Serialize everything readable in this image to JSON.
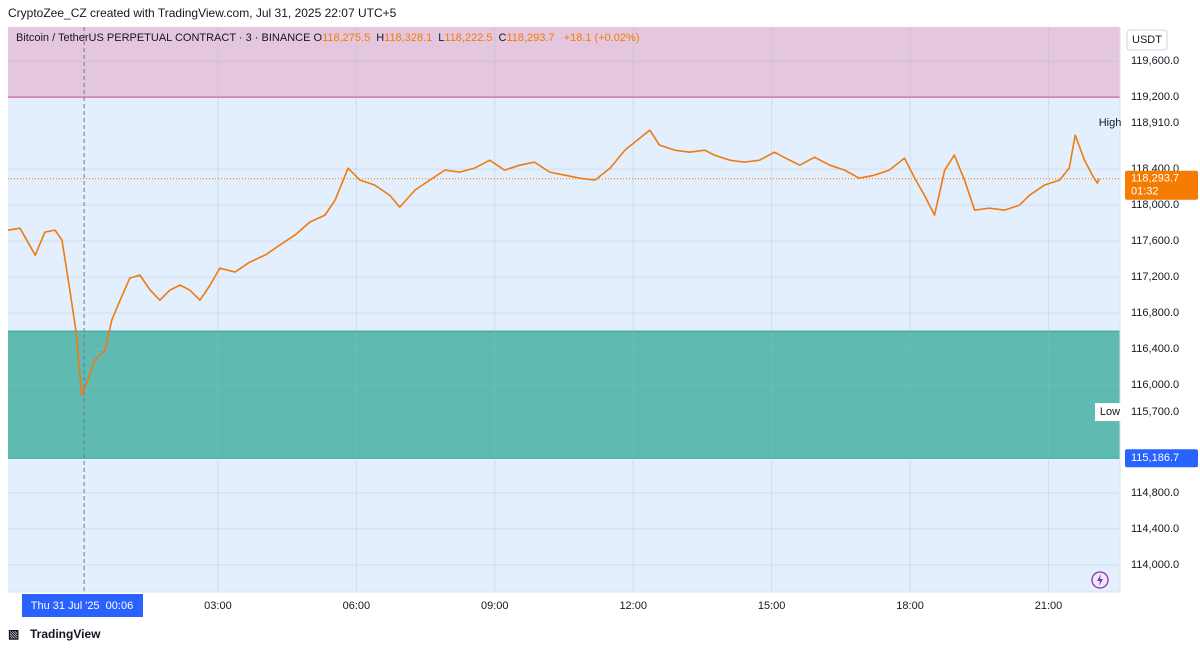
{
  "header": "CryptoZee_CZ created with TradingView.com, Jul 31, 2025 22:07 UTC+5",
  "legend": {
    "symbol": "Bitcoin / TetherUS PERPETUAL CONTRACT · 3 · BINANCE",
    "ohlc": [
      {
        "key": "O",
        "value": "118,275.5"
      },
      {
        "key": "H",
        "value": "118,328.1"
      },
      {
        "key": "L",
        "value": "118,222.5"
      },
      {
        "key": "C",
        "value": "118,293.7"
      }
    ],
    "change": "+18.1 (+0.02%)"
  },
  "footer": "TradingView",
  "chart_data": {
    "type": "line",
    "currency": "USDT",
    "color": "#ef7a12",
    "x": [
      -1.55,
      -1.29,
      -0.96,
      -0.75,
      -0.53,
      -0.38,
      -0.21,
      -0.08,
      0.05,
      0.18,
      0.33,
      0.55,
      0.7,
      0.88,
      1.09,
      1.31,
      1.53,
      1.74,
      1.96,
      2.18,
      2.39,
      2.61,
      2.83,
      3.04,
      3.37,
      3.69,
      4.02,
      4.34,
      4.67,
      4.99,
      5.32,
      5.54,
      5.82,
      6.08,
      6.4,
      6.72,
      6.94,
      7.27,
      7.59,
      7.92,
      8.24,
      8.56,
      8.89,
      9.21,
      9.54,
      9.86,
      10.19,
      10.52,
      10.84,
      11.17,
      11.5,
      11.82,
      12.14,
      12.36,
      12.57,
      12.9,
      13.22,
      13.55,
      13.76,
      14.09,
      14.41,
      14.74,
      15.06,
      15.39,
      15.61,
      15.93,
      16.26,
      16.58,
      16.9,
      17.23,
      17.55,
      17.88,
      18.1,
      18.31,
      18.53,
      18.75,
      18.96,
      19.18,
      19.4,
      19.72,
      20.05,
      20.37,
      20.59,
      20.91,
      21.24,
      21.45,
      21.58,
      21.78,
      21.95,
      22.06,
      22.1
    ],
    "values": [
      117722,
      117744,
      117444,
      117700,
      117722,
      117611,
      117056,
      116611,
      115889,
      116056,
      116278,
      116389,
      116722,
      116944,
      117189,
      117222,
      117056,
      116944,
      117056,
      117111,
      117056,
      116944,
      117111,
      117300,
      117256,
      117367,
      117444,
      117556,
      117667,
      117811,
      117889,
      118056,
      118411,
      118278,
      118222,
      118111,
      117978,
      118167,
      118278,
      118389,
      118367,
      118411,
      118500,
      118389,
      118444,
      118478,
      118367,
      118333,
      118300,
      118278,
      118411,
      118611,
      118744,
      118833,
      118667,
      118611,
      118589,
      118611,
      118556,
      118500,
      118478,
      118500,
      118589,
      118500,
      118444,
      118533,
      118444,
      118389,
      118300,
      118333,
      118389,
      118522,
      118300,
      118111,
      117889,
      118389,
      118556,
      118278,
      117944,
      117967,
      117944,
      118000,
      118111,
      118222,
      118278,
      118411,
      118778,
      118500,
      118333,
      118244,
      118293.7
    ],
    "xlim": [
      -1.55,
      22.55
    ],
    "ylim": [
      113700,
      119980
    ],
    "xticks": [
      {
        "value": 3,
        "label": "03:00"
      },
      {
        "value": 6,
        "label": "06:00"
      },
      {
        "value": 9,
        "label": "09:00"
      },
      {
        "value": 12,
        "label": "12:00"
      },
      {
        "value": 15,
        "label": "15:00"
      },
      {
        "value": 18,
        "label": "18:00"
      },
      {
        "value": 21,
        "label": "21:00"
      }
    ],
    "yticks": [
      {
        "value": 119600,
        "label": "119,600.0"
      },
      {
        "value": 119200,
        "label": "119,200.0"
      },
      {
        "value": 118400,
        "label": "118,400.0"
      },
      {
        "value": 118000,
        "label": "118,000.0"
      },
      {
        "value": 117600,
        "label": "117,600.0"
      },
      {
        "value": 117200,
        "label": "117,200.0"
      },
      {
        "value": 116800,
        "label": "116,800.0"
      },
      {
        "value": 116400,
        "label": "116,400.0"
      },
      {
        "value": 116000,
        "label": "116,000.0"
      },
      {
        "value": 114800,
        "label": "114,800.0"
      },
      {
        "value": 114400,
        "label": "114,400.0"
      },
      {
        "value": 114000,
        "label": "114,000.0"
      }
    ],
    "grid": true,
    "zones": [
      {
        "from": 119200,
        "color": "#e5c6df",
        "border": "#e91e63"
      },
      {
        "from": 115186.7,
        "to": 116600,
        "color": "#5fbab2",
        "border": "#26a69a"
      }
    ],
    "last_price": {
      "value": 118293.7,
      "label": "118,293.7",
      "countdown": "01:32",
      "color": "#f57c00"
    },
    "price_tag": {
      "value": 115186.7,
      "label": "115,186.7",
      "color": "#2962ff"
    },
    "annotations": [
      {
        "text": "High",
        "value": 118910,
        "label": "118,910.0"
      },
      {
        "text": "Low",
        "value": 115700,
        "label": "115,700.0"
      }
    ],
    "crosshair": {
      "x": 0.1,
      "label": "Thu 31 Jul '25  00:06"
    }
  }
}
